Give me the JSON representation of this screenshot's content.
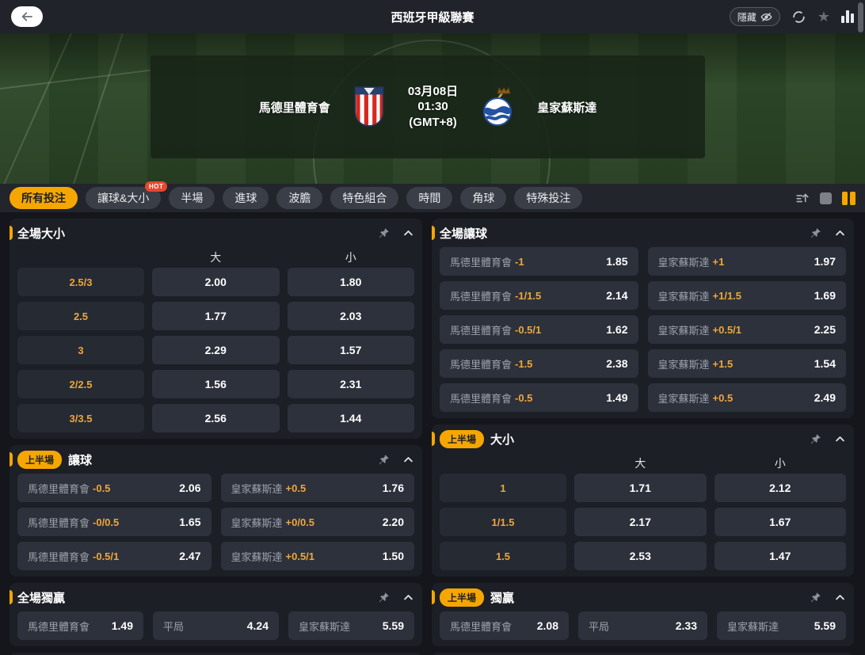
{
  "top_bar": {
    "back_icon": "arrow-left",
    "title": "西班牙甲級聯賽",
    "hide_label": "隱藏",
    "icon_names": [
      "eye-off-icon",
      "refresh-icon",
      "star-icon",
      "stats-icon"
    ]
  },
  "accent": {
    "yellow": "#F5A602",
    "orange_text": "#EFA63C",
    "hot_red": "#E8472E"
  },
  "match": {
    "home_team": "馬德里體育會",
    "away_team": "皇家蘇斯達",
    "date": "03月08日",
    "time": "01:30",
    "timezone": "(GMT+8)"
  },
  "tabs": [
    {
      "label": "所有投注",
      "active": true
    },
    {
      "label": "讓球&大小",
      "badge": "HOT"
    },
    {
      "label": "半場"
    },
    {
      "label": "進球"
    },
    {
      "label": "波膽"
    },
    {
      "label": "特色組合"
    },
    {
      "label": "時間"
    },
    {
      "label": "角球"
    },
    {
      "label": "特殊投注"
    }
  ],
  "view_controls": {
    "icon_names": [
      "sort-asc-icon",
      "single-column-icon",
      "dual-column-icon"
    ]
  },
  "panels": {
    "full_ou": {
      "title": "全場大小",
      "col_headers": [
        "大",
        "小"
      ],
      "rows": [
        {
          "line": "2.5/3",
          "over": "2.00",
          "under": "1.80"
        },
        {
          "line": "2.5",
          "over": "1.77",
          "under": "2.03"
        },
        {
          "line": "3",
          "over": "2.29",
          "under": "1.57"
        },
        {
          "line": "2/2.5",
          "over": "1.56",
          "under": "2.31"
        },
        {
          "line": "3/3.5",
          "over": "2.56",
          "under": "1.44"
        }
      ]
    },
    "full_handicap": {
      "title": "全場讓球",
      "rows": [
        {
          "home_team": "馬德里體育會",
          "home_line": "-1",
          "home_odds": "1.85",
          "away_team": "皇家蘇斯達",
          "away_line": "+1",
          "away_odds": "1.97"
        },
        {
          "home_team": "馬德里體育會",
          "home_line": "-1/1.5",
          "home_odds": "2.14",
          "away_team": "皇家蘇斯達",
          "away_line": "+1/1.5",
          "away_odds": "1.69"
        },
        {
          "home_team": "馬德里體育會",
          "home_line": "-0.5/1",
          "home_odds": "1.62",
          "away_team": "皇家蘇斯達",
          "away_line": "+0.5/1",
          "away_odds": "2.25"
        },
        {
          "home_team": "馬德里體育會",
          "home_line": "-1.5",
          "home_odds": "2.38",
          "away_team": "皇家蘇斯達",
          "away_line": "+1.5",
          "away_odds": "1.54"
        },
        {
          "home_team": "馬德里體育會",
          "home_line": "-0.5",
          "home_odds": "1.49",
          "away_team": "皇家蘇斯達",
          "away_line": "+0.5",
          "away_odds": "2.49"
        }
      ]
    },
    "fh_handicap": {
      "badge": "上半場",
      "title": "讓球",
      "rows": [
        {
          "home_team": "馬德里體育會",
          "home_line": "-0.5",
          "home_odds": "2.06",
          "away_team": "皇家蘇斯達",
          "away_line": "+0.5",
          "away_odds": "1.76"
        },
        {
          "home_team": "馬德里體育會",
          "home_line": "-0/0.5",
          "home_odds": "1.65",
          "away_team": "皇家蘇斯達",
          "away_line": "+0/0.5",
          "away_odds": "2.20"
        },
        {
          "home_team": "馬德里體育會",
          "home_line": "-0.5/1",
          "home_odds": "2.47",
          "away_team": "皇家蘇斯達",
          "away_line": "+0.5/1",
          "away_odds": "1.50"
        }
      ]
    },
    "fh_ou": {
      "badge": "上半場",
      "title": "大小",
      "col_headers": [
        "大",
        "小"
      ],
      "rows": [
        {
          "line": "1",
          "over": "1.71",
          "under": "2.12"
        },
        {
          "line": "1/1.5",
          "over": "2.17",
          "under": "1.67"
        },
        {
          "line": "1.5",
          "over": "2.53",
          "under": "1.47"
        }
      ]
    },
    "full_win": {
      "title": "全場獨贏",
      "cells": [
        {
          "label": "馬德里體育會",
          "odds": "1.49"
        },
        {
          "label": "平局",
          "odds": "4.24"
        },
        {
          "label": "皇家蘇斯達",
          "odds": "5.59"
        }
      ]
    },
    "fh_win": {
      "badge": "上半場",
      "title": "獨贏",
      "cells": [
        {
          "label": "馬德里體育會",
          "odds": "2.08"
        },
        {
          "label": "平局",
          "odds": "2.33"
        },
        {
          "label": "皇家蘇斯達",
          "odds": "5.59"
        }
      ]
    }
  }
}
